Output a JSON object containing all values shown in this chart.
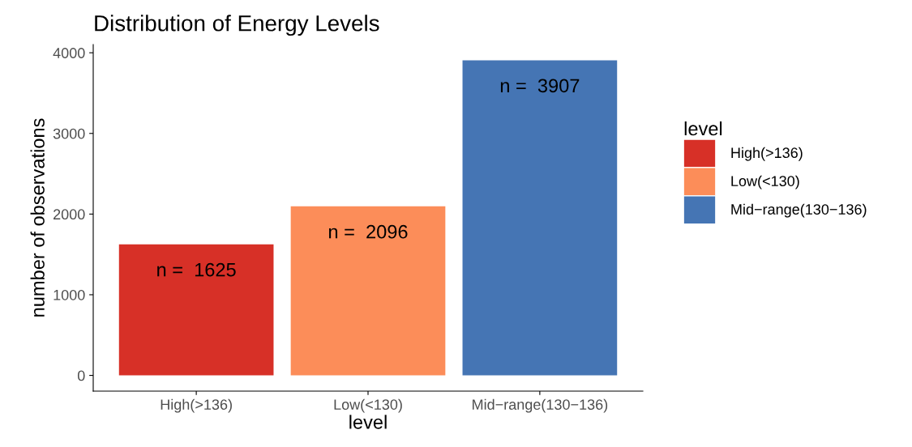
{
  "chart_data": {
    "type": "bar",
    "title": "Distribution of Energy Levels",
    "xlabel": "level",
    "ylabel": "number of observations",
    "legend_title": "level",
    "categories": [
      "High(>136)",
      "Low(<130)",
      "Mid−range(130−136)"
    ],
    "series": [
      {
        "name": "High(>136)",
        "color": "#d73027",
        "values": [
          1625,
          null,
          null
        ]
      },
      {
        "name": "Low(<130)",
        "color": "#fc8d59",
        "values": [
          null,
          2096,
          null
        ]
      },
      {
        "name": "Mid−range(130−136)",
        "color": "#4575b4",
        "values": [
          null,
          null,
          3907
        ]
      }
    ],
    "value_labels": [
      "n =  1625",
      "n =  2096",
      "n =  3907"
    ],
    "ylim": [
      -195,
      4102
    ],
    "yticks": [
      0,
      1000,
      2000,
      3000,
      4000
    ],
    "grid": false,
    "legend": "right"
  }
}
